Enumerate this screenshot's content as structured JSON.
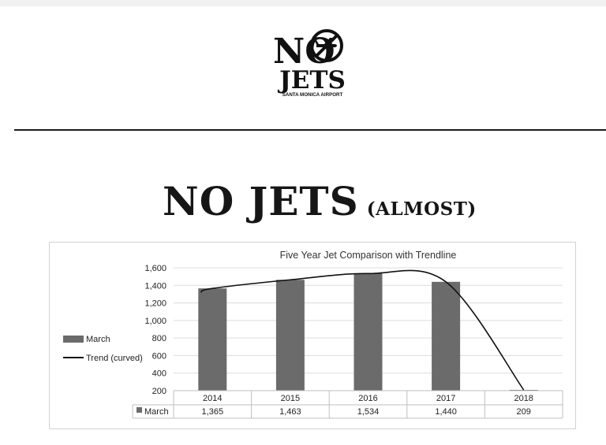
{
  "logo": {
    "line1": "NO",
    "line2": "JETS",
    "caption": "SANTA MONICA AIRPORT",
    "icon": "no-jet-icon"
  },
  "headline": {
    "main": "NO JETS",
    "sub": "(ALMOST)"
  },
  "chart_data": {
    "type": "bar",
    "title": "Five Year Jet Comparison with Trendline",
    "categories": [
      "2014",
      "2015",
      "2016",
      "2017",
      "2018"
    ],
    "series": [
      {
        "name": "March",
        "values": [
          1365,
          1463,
          1534,
          1440,
          209
        ],
        "color": "#6b6b6b"
      }
    ],
    "trendline": {
      "name": "Trend (curved)",
      "color": "#111111"
    },
    "ylim": [
      200,
      1600
    ],
    "yticks": [
      200,
      400,
      600,
      800,
      1000,
      1200,
      1400,
      1600
    ],
    "ytick_labels": [
      "200",
      "400",
      "600",
      "800",
      "1,000",
      "1,200",
      "1,400",
      "1,600"
    ],
    "value_labels": [
      "1,365",
      "1,463",
      "1,534",
      "1,440",
      "209"
    ],
    "grid": true,
    "legend_position": "left",
    "data_table": true
  }
}
